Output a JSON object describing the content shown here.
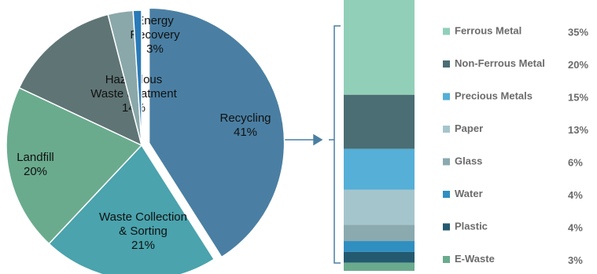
{
  "chart_data": [
    {
      "type": "pie",
      "categories": [
        "Recycling",
        "Waste Collection & Sorting",
        "Landfill",
        "Hazardous Waste treatment",
        "Energy Recovery",
        null
      ],
      "values": [
        41,
        21,
        20,
        14,
        3,
        1
      ],
      "value_labels": [
        "41%",
        "21%",
        "20%",
        "14%",
        "3%",
        null
      ],
      "colors": [
        "#4a7fa3",
        "#4aa3ad",
        "#6aab8e",
        "#5f7475",
        "#8aa8aa",
        "#2a7ab8"
      ]
    },
    {
      "type": "bar",
      "stacked": true,
      "categories": [
        "Ferrous Metal",
        "Non-Ferrous Metal",
        "Precious Metals",
        "Paper",
        "Glass",
        "Water",
        "Plastic",
        "E-Waste"
      ],
      "values": [
        35,
        20,
        15,
        13,
        6,
        4,
        4,
        3
      ],
      "value_labels": [
        "35%",
        "20%",
        "15%",
        "13%",
        "6%",
        "4%",
        "4%",
        "3%"
      ],
      "colors": [
        "#92cfb8",
        "#4a6e73",
        "#55afd6",
        "#a5c5cc",
        "#8aaab0",
        "#2f8fc0",
        "#245a70",
        "#6aab8e"
      ]
    }
  ]
}
